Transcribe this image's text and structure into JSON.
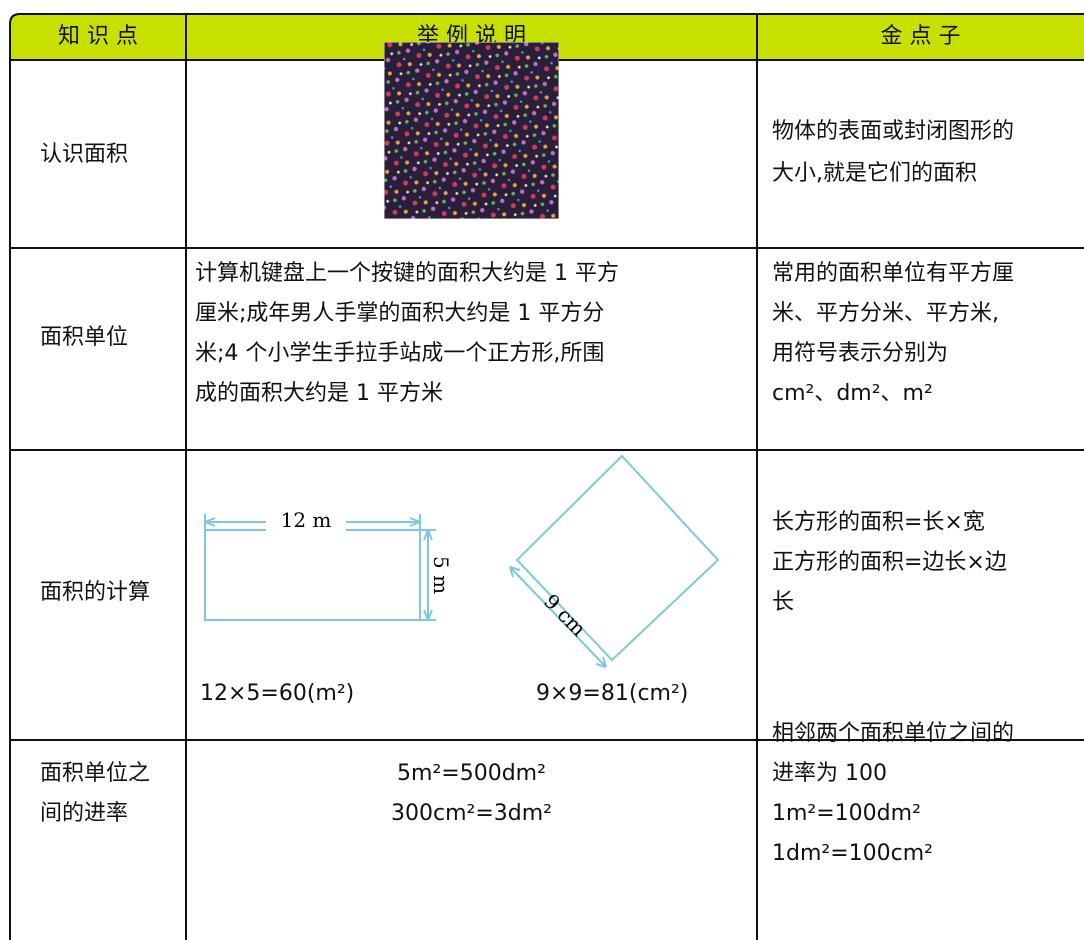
{
  "table": {
    "header": [
      "知 识 点",
      "举 例 说 明",
      "金 点 子"
    ],
    "rows": [
      {
        "topic": [
          "认识面积"
        ],
        "tip": [
          "物体的表面或封闭图形的",
          "大小,就是它们的面积"
        ]
      },
      {
        "topic": [
          "面积单位"
        ],
        "example": [
          "计算机键盘上一个按键的面积大约是 1 平方",
          "厘米;成年男人手掌的面积大约是 1 平方分",
          "米;4 个小学生手拉手站成一个正方形,所围",
          "成的面积大约是 1 平方米"
        ],
        "tip": [
          "常用的面积单位有平方厘",
          "米、平方分米、平方米,",
          "用符号表示分别为",
          "cm²、dm²、m²"
        ]
      },
      {
        "topic": [
          "面积的计算"
        ],
        "diagram": {
          "rect_width": "12 m",
          "rect_height": "5 m",
          "square_side": "9 cm"
        },
        "example": [
          "12×5=60(m²)",
          "9×9=81(cm²)"
        ],
        "tip": [
          "长方形的面积=长×宽",
          "正方形的面积=边长×边",
          "长"
        ]
      },
      {
        "topic": [
          "面积单位之",
          "间的进率"
        ],
        "example": [
          "5m²=500dm²",
          "300cm²=3dm²"
        ],
        "tip": [
          "相邻两个面积单位之间的",
          "进率为 100",
          "1m²=100dm²",
          "1dm²=100cm²"
        ]
      }
    ]
  }
}
